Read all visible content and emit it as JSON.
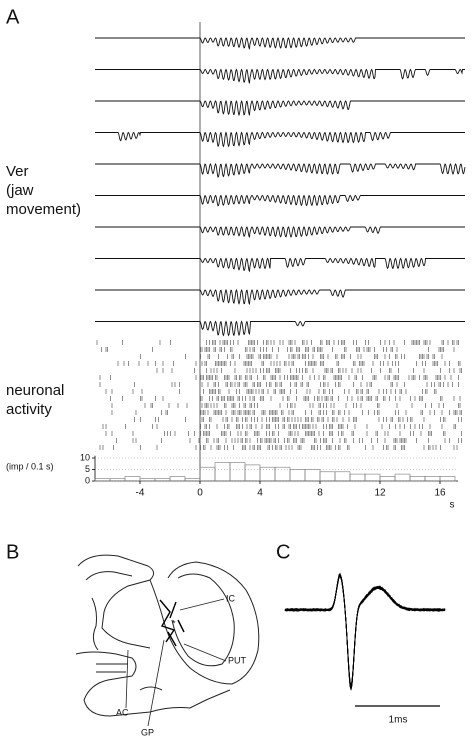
{
  "panel_a": {
    "label": "A",
    "ylabel_lines": [
      "Ver",
      "(jaw",
      "movement)"
    ],
    "raster_label_lines": [
      "neuronal",
      "activity"
    ]
  },
  "chart_data": {
    "type": "histogram",
    "ylabel": "(imp / 0.1 s)",
    "x_unit": "s",
    "bins": [
      -7,
      -6,
      -5,
      -4,
      -3,
      -2,
      -1,
      0,
      1,
      2,
      3,
      4,
      5,
      6,
      7,
      8,
      9,
      10,
      11,
      12,
      13,
      14,
      15,
      16,
      17
    ],
    "values": [
      1,
      1,
      2,
      1,
      1,
      2,
      1,
      6,
      8,
      8,
      7,
      6,
      6,
      5,
      5,
      4,
      4,
      3,
      3,
      2,
      3,
      2,
      2,
      2
    ],
    "color": "#777777",
    "xlim": [
      -7,
      17.2
    ],
    "xticks": [
      -4,
      0,
      4,
      8,
      12,
      16
    ],
    "ylim": [
      0,
      11
    ],
    "yticks": [
      0,
      5,
      10
    ]
  },
  "panel_b": {
    "label": "B",
    "labels": [
      "IC",
      "PUT",
      "AC",
      "GP"
    ],
    "asterisk": "*"
  },
  "panel_c": {
    "label": "C",
    "scale_label": "1ms"
  }
}
